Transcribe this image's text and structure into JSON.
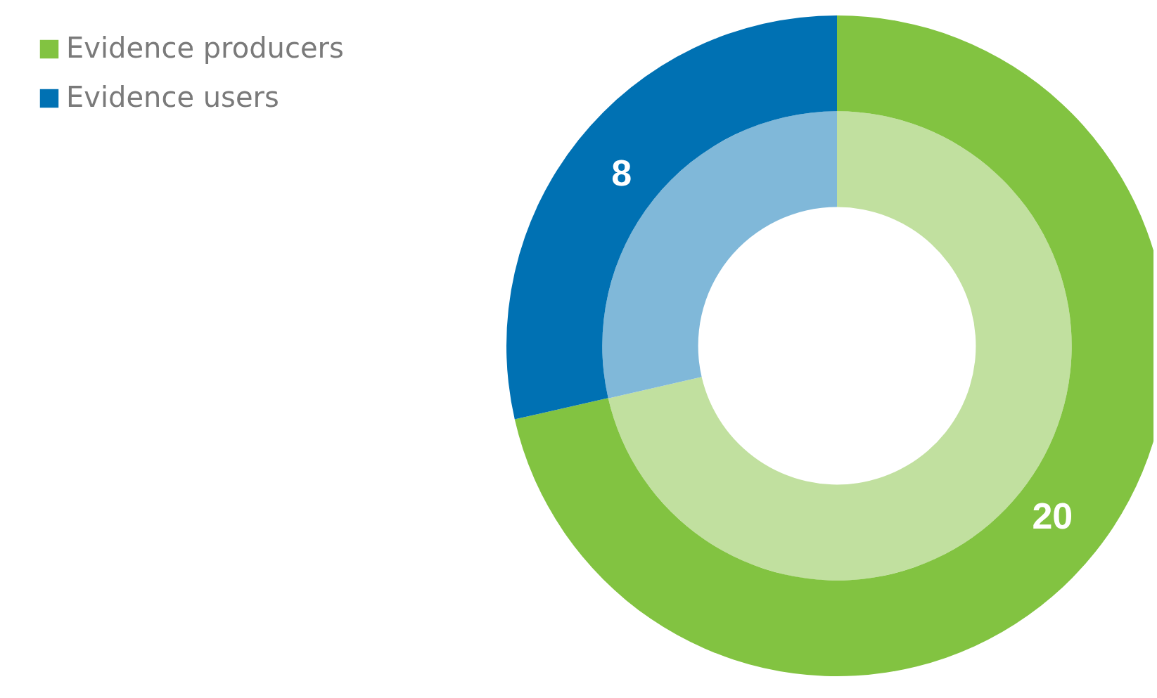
{
  "chart_data": {
    "type": "donut",
    "categories": [
      "Evidence producers",
      "Evidence users"
    ],
    "series": [
      {
        "values": [
          71.4,
          28.6
        ],
        "colors": [
          "#c1e09f",
          "#80b8d9"
        ]
      },
      {
        "values": [
          20,
          8
        ],
        "colors": [
          "#82c341",
          "#0071b3"
        ],
        "value_labels": [
          "20",
          "8"
        ]
      }
    ],
    "legend": "top left"
  }
}
